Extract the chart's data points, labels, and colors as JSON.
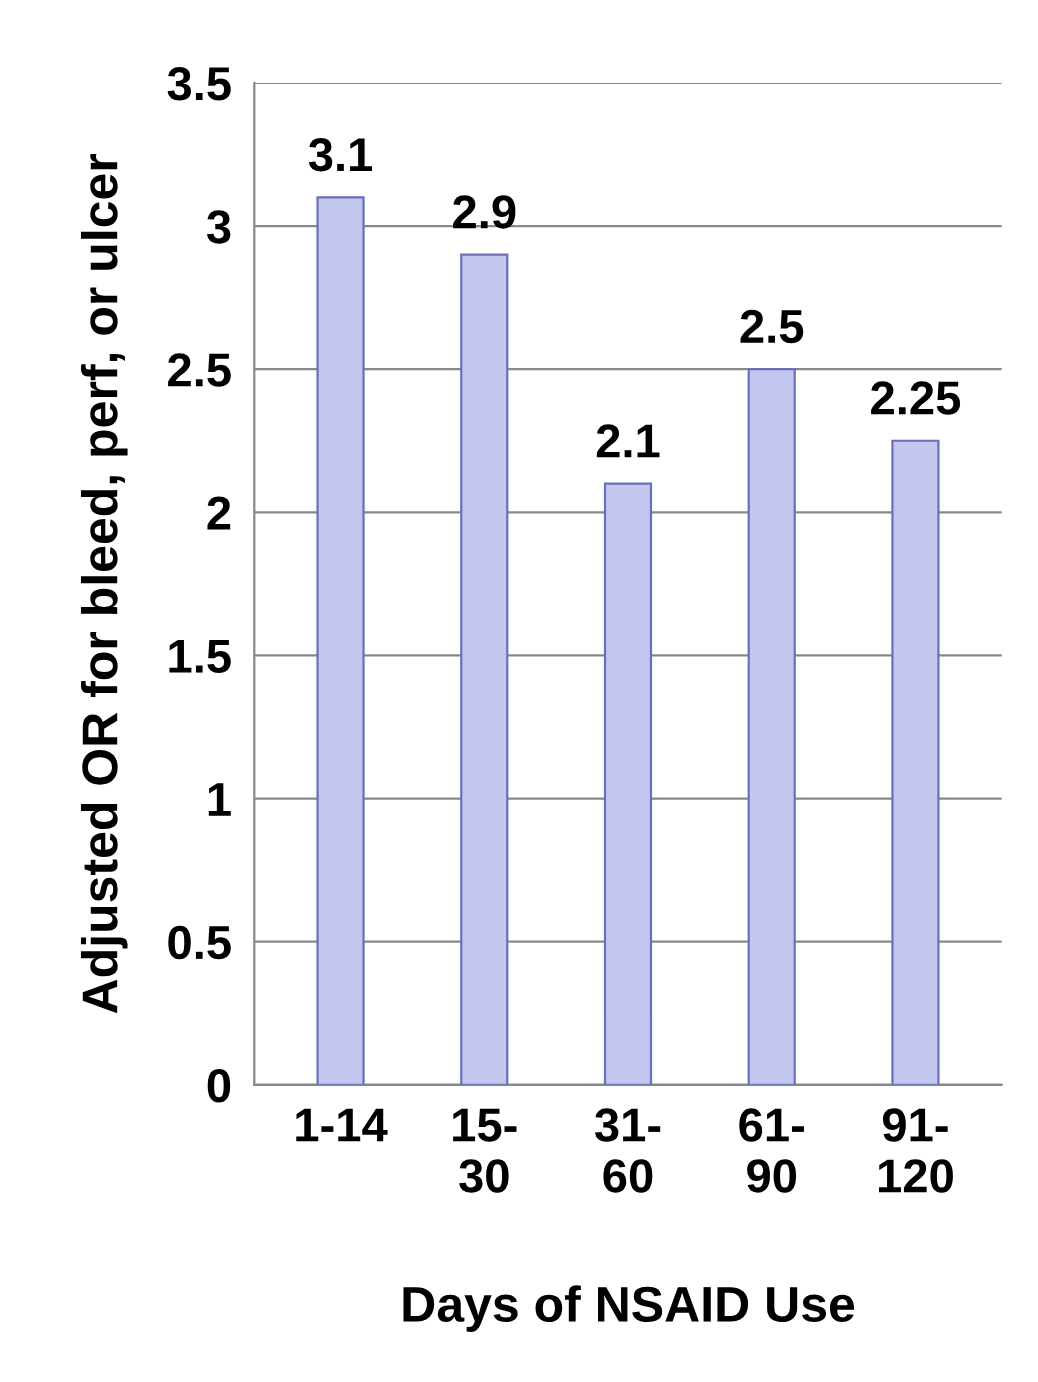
{
  "chart_data": {
    "type": "bar",
    "xlabel": "Days of NSAID Use",
    "ylabel": "Adjusted OR for bleed, perf, or ulcer",
    "categories": [
      "1-14",
      "15-\n30",
      "31-\n60",
      "61-\n90",
      "91-\n120"
    ],
    "values": [
      3.1,
      2.9,
      2.1,
      2.5,
      2.25
    ],
    "color": "#c3c7f0",
    "ylim": [
      0,
      3.5
    ],
    "yticks": [
      0,
      0.5,
      1,
      1.5,
      2,
      2.5,
      3,
      3.5
    ],
    "grid": "y",
    "data_labels": true
  }
}
